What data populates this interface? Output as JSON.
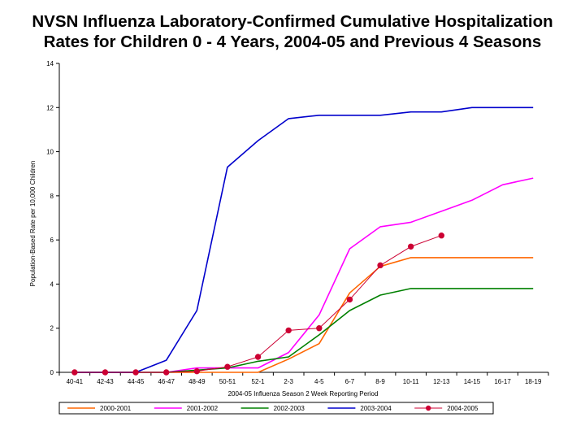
{
  "title_line1": "NVSN Influenza Laboratory-Confirmed Cumulative Hospitalization",
  "title_line2": "Rates for Children 0 - 4 Years, 2004-05 and Previous 4 Seasons",
  "chart_data": {
    "type": "line",
    "xlabel": "2004-05 Influenza Season 2 Week Reporting Period",
    "ylabel": "Population-Based Rate per 10,000 Children",
    "ylim": [
      0,
      14
    ],
    "yticks": [
      0,
      2,
      4,
      6,
      8,
      10,
      12,
      14
    ],
    "grid": false,
    "legend_position": "bottom",
    "categories": [
      "40-41",
      "42-43",
      "44-45",
      "46-47",
      "48-49",
      "50-51",
      "52-1",
      "2-3",
      "4-5",
      "6-7",
      "8-9",
      "10-11",
      "12-13",
      "14-15",
      "16-17",
      "18-19"
    ],
    "series": [
      {
        "name": "2000-2001",
        "color": "#FF6600",
        "marker": "none",
        "values": [
          0,
          0,
          0,
          0,
          0,
          0,
          0,
          0.6,
          1.3,
          3.6,
          4.8,
          5.2,
          5.2,
          5.2,
          5.2,
          5.2
        ]
      },
      {
        "name": "2001-2002",
        "color": "#FF00FF",
        "marker": "none",
        "values": [
          0,
          0,
          0,
          0,
          0.2,
          0.2,
          0.2,
          0.9,
          2.6,
          5.6,
          6.6,
          6.8,
          7.3,
          7.8,
          8.5,
          8.8
        ]
      },
      {
        "name": "2002-2003",
        "color": "#008000",
        "marker": "none",
        "values": [
          0,
          0,
          0,
          0,
          0.1,
          0.2,
          0.5,
          0.7,
          1.7,
          2.8,
          3.5,
          3.8,
          3.8,
          3.8,
          3.8,
          3.8
        ]
      },
      {
        "name": "2003-2004",
        "color": "#0000CC",
        "marker": "none",
        "values": [
          0,
          0,
          0,
          0.55,
          2.8,
          9.3,
          10.5,
          11.5,
          11.65,
          11.65,
          11.65,
          11.8,
          11.8,
          12.0,
          12.0,
          12.0
        ]
      },
      {
        "name": "2004-2005",
        "color": "#CC0033",
        "marker": "circle",
        "values": [
          0,
          0,
          0,
          0,
          0.05,
          0.25,
          0.7,
          1.9,
          2.0,
          3.3,
          4.85,
          5.7,
          6.2,
          null,
          null,
          null
        ]
      }
    ]
  }
}
